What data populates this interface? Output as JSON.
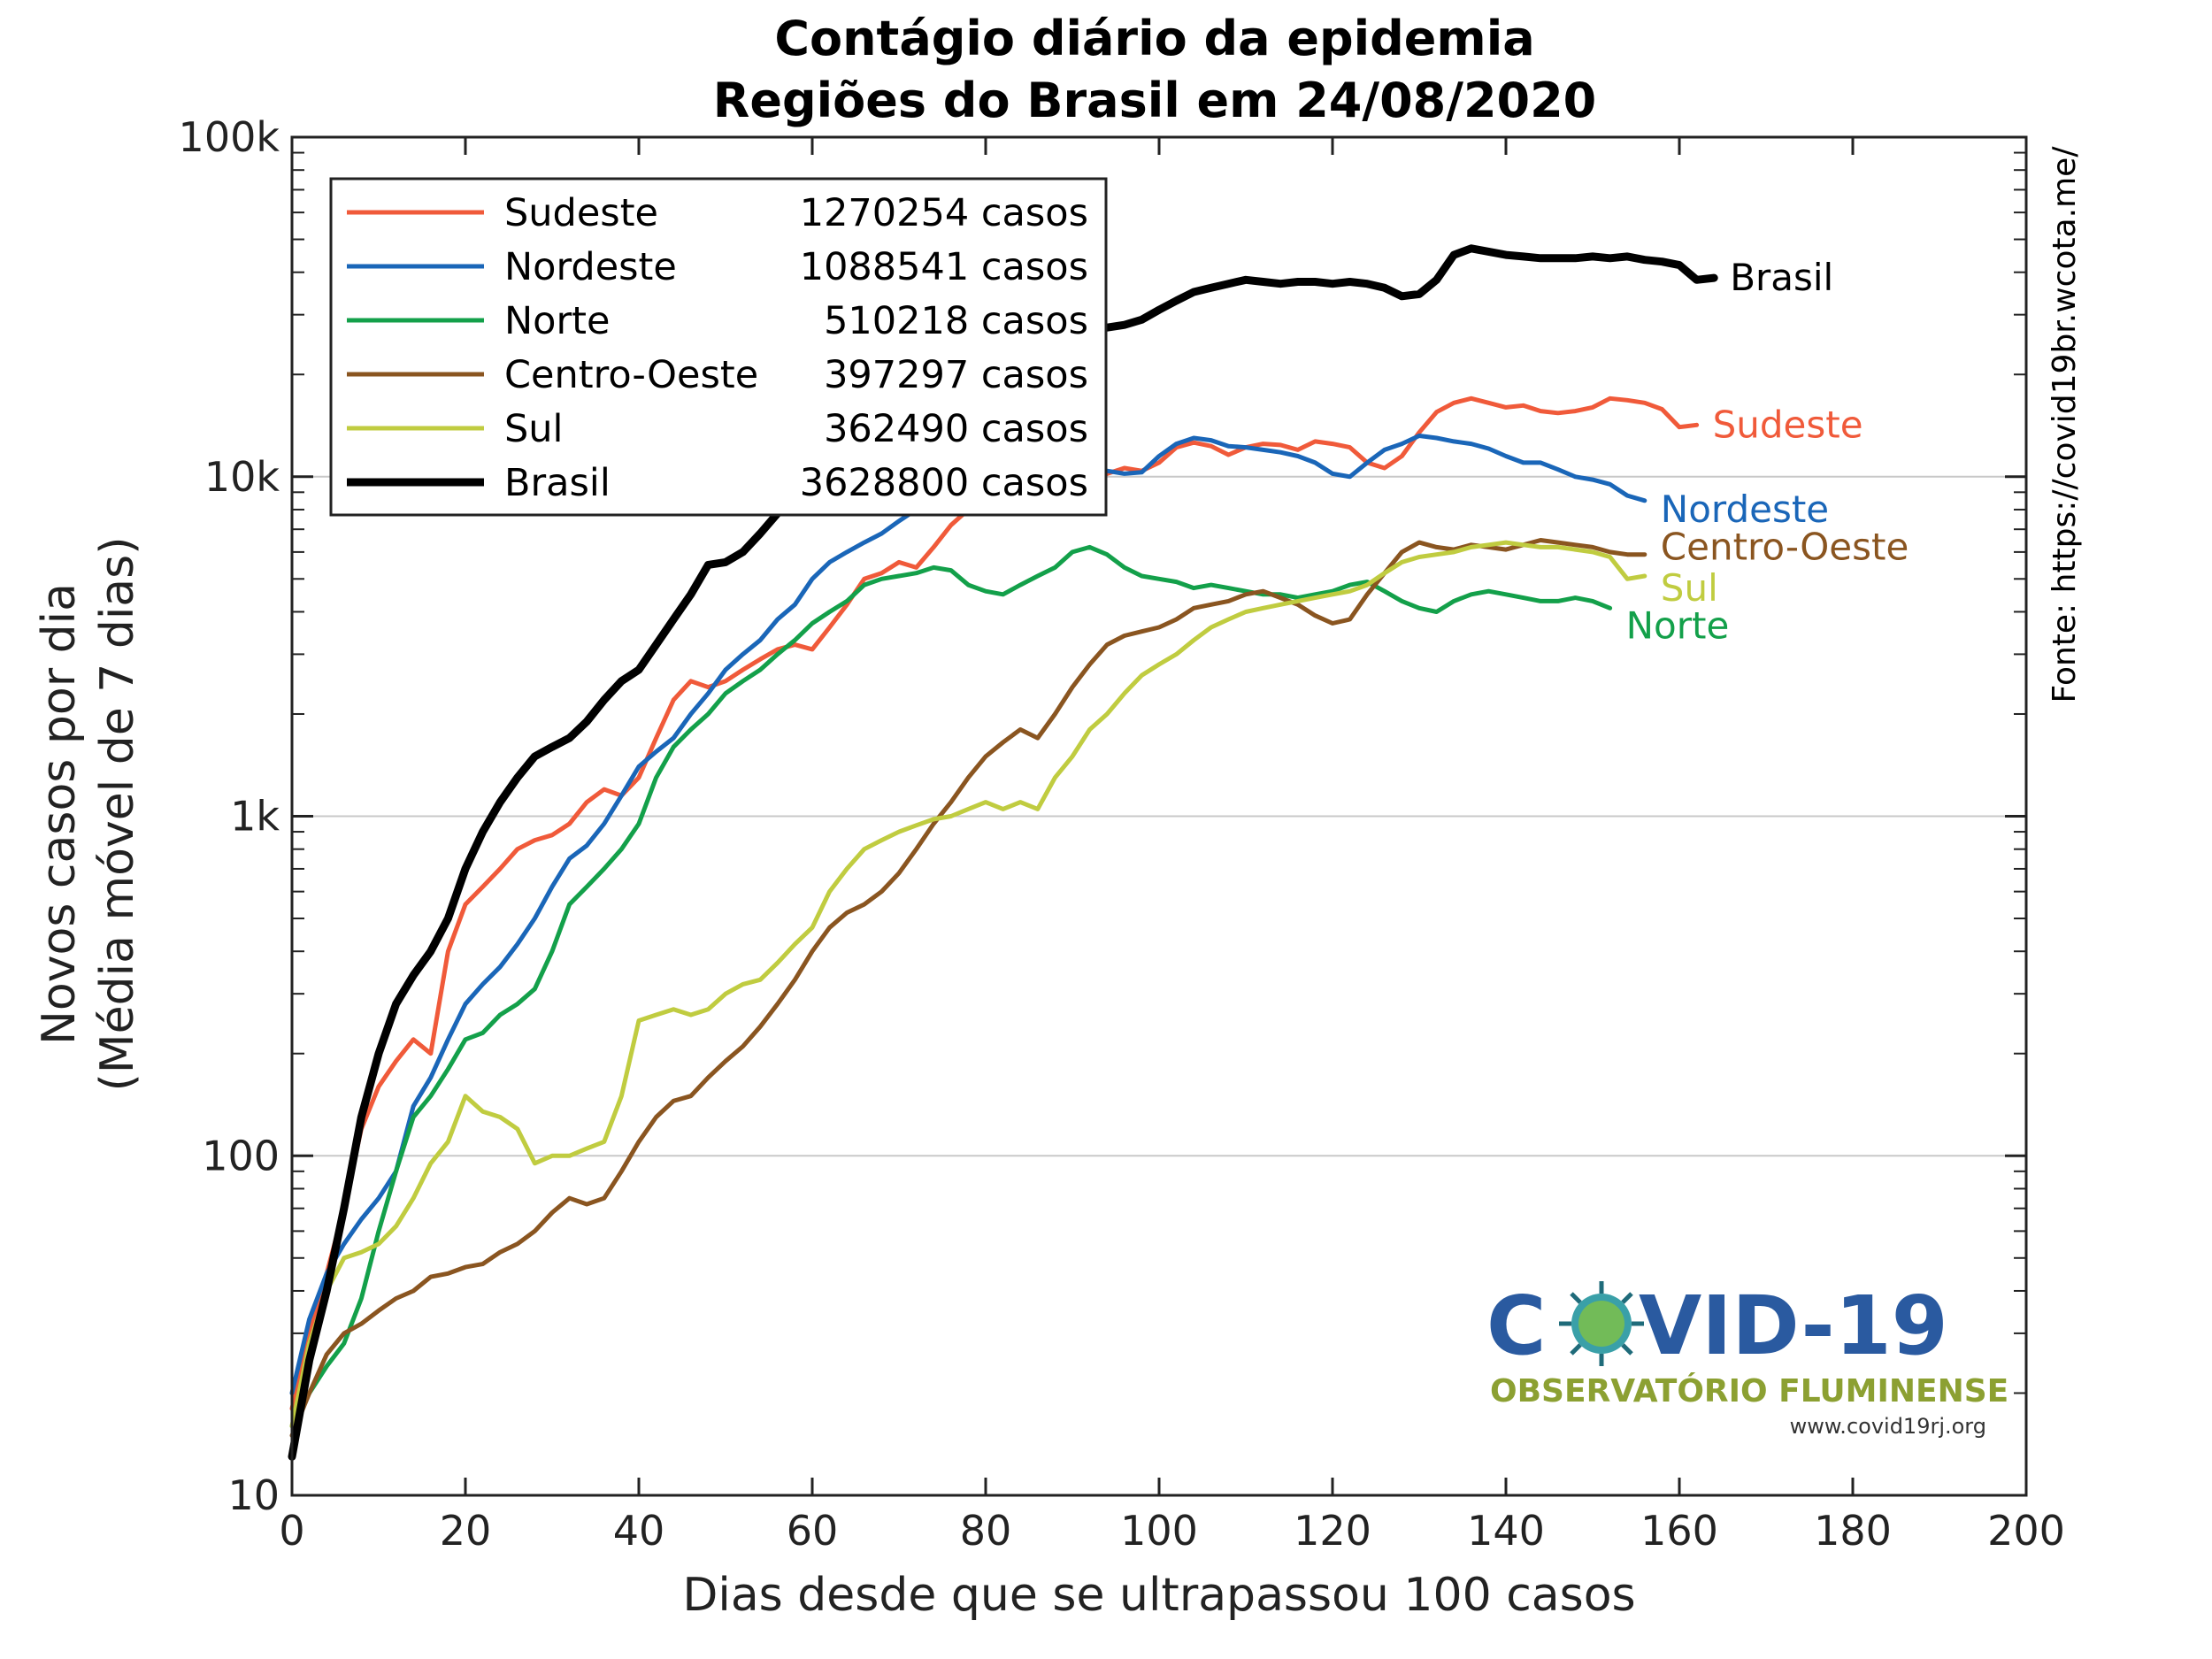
{
  "chart_data": {
    "type": "line",
    "title": "Contágio diário da epidemia",
    "subtitle": "Regiões do Brasil em 24/08/2020",
    "xlabel": "Dias desde que se ultrapassou 100 casos",
    "ylabel_line1": "Novos casos por dia",
    "ylabel_line2": "(Média móvel de 7 dias)",
    "source": "Fonte: https://covid19br.wcota.me/",
    "yscale": "log",
    "xlim": [
      0,
      200
    ],
    "ylim": [
      10,
      100000
    ],
    "grid": "y-major",
    "legend_position": "top-left",
    "x_ticks": [
      0,
      20,
      40,
      60,
      80,
      100,
      120,
      140,
      160,
      180,
      200
    ],
    "x_tick_labels": [
      "0",
      "20",
      "40",
      "60",
      "80",
      "100",
      "120",
      "140",
      "160",
      "180",
      "200"
    ],
    "y_ticks": [
      10,
      100,
      1000,
      10000,
      100000
    ],
    "y_tick_labels": [
      "10",
      "100",
      "1k",
      "10k",
      "100k"
    ],
    "series": [
      {
        "name": "Sudeste",
        "total": "1270254 casos",
        "end_label": "Sudeste",
        "color": "#f05a3a",
        "width": 5,
        "x": [
          0,
          2,
          4,
          6,
          8,
          10,
          12,
          14,
          16,
          18,
          20,
          22,
          24,
          26,
          28,
          30,
          32,
          34,
          36,
          38,
          40,
          42,
          44,
          46,
          48,
          50,
          52,
          54,
          56,
          58,
          60,
          62,
          64,
          66,
          68,
          70,
          72,
          74,
          76,
          78,
          80,
          82,
          84,
          86,
          88,
          90,
          92,
          94,
          96,
          98,
          100,
          102,
          104,
          106,
          108,
          110,
          112,
          114,
          116,
          118,
          120,
          122,
          124,
          126,
          128,
          130,
          132,
          134,
          136,
          138,
          140,
          142,
          144,
          146,
          148,
          150,
          152,
          154,
          156,
          158,
          160,
          162
        ],
        "y": [
          18,
          30,
          45,
          70,
          120,
          160,
          190,
          220,
          200,
          400,
          550,
          620,
          700,
          800,
          850,
          880,
          950,
          1100,
          1200,
          1150,
          1300,
          1700,
          2200,
          2500,
          2400,
          2500,
          2700,
          2900,
          3100,
          3200,
          3100,
          3600,
          4200,
          5000,
          5200,
          5600,
          5400,
          6200,
          7200,
          8000,
          8600,
          9000,
          9400,
          9200,
          9700,
          10000,
          9600,
          10200,
          10600,
          10400,
          11000,
          12200,
          12600,
          12300,
          11600,
          12200,
          12500,
          12400,
          12000,
          12700,
          12500,
          12200,
          11000,
          10600,
          11500,
          13500,
          15500,
          16500,
          17000,
          16500,
          16000,
          16200,
          15600,
          15400,
          15600,
          16000,
          17000,
          16800,
          16500,
          15800,
          14000,
          14200
        ]
      },
      {
        "name": "Nordeste",
        "total": "1088541 casos",
        "end_label": "Nordeste",
        "color": "#1a66b8",
        "width": 5,
        "x": [
          0,
          2,
          4,
          6,
          8,
          10,
          12,
          14,
          16,
          18,
          20,
          22,
          24,
          26,
          28,
          30,
          32,
          34,
          36,
          38,
          40,
          42,
          44,
          46,
          48,
          50,
          52,
          54,
          56,
          58,
          60,
          62,
          64,
          66,
          68,
          70,
          72,
          74,
          76,
          78,
          80,
          82,
          84,
          86,
          88,
          90,
          92,
          94,
          96,
          98,
          100,
          102,
          104,
          106,
          108,
          110,
          112,
          114,
          116,
          118,
          120,
          122,
          124,
          126,
          128,
          130,
          132,
          134,
          136,
          138,
          140,
          142,
          144,
          146,
          148,
          150,
          152,
          154,
          156
        ],
        "y": [
          20,
          33,
          45,
          55,
          65,
          75,
          90,
          140,
          170,
          220,
          280,
          320,
          360,
          420,
          500,
          620,
          750,
          820,
          950,
          1150,
          1400,
          1550,
          1700,
          2000,
          2300,
          2700,
          3000,
          3300,
          3800,
          4200,
          5000,
          5600,
          6000,
          6400,
          6800,
          7400,
          8000,
          8800,
          9500,
          9800,
          10200,
          10600,
          10400,
          10200,
          10000,
          10300,
          10500,
          10400,
          10200,
          10300,
          11500,
          12500,
          13000,
          12800,
          12300,
          12200,
          12000,
          11800,
          11500,
          11000,
          10200,
          10000,
          11000,
          12000,
          12500,
          13200,
          13000,
          12700,
          12500,
          12100,
          11500,
          11000,
          11000,
          10500,
          10000,
          9800,
          9500,
          8800,
          8500
        ]
      },
      {
        "name": "Norte",
        "total": "510218 casos",
        "end_label": "Norte",
        "color": "#13a04a",
        "width": 5,
        "x": [
          0,
          2,
          4,
          6,
          8,
          10,
          12,
          14,
          16,
          18,
          20,
          22,
          24,
          26,
          28,
          30,
          32,
          34,
          36,
          38,
          40,
          42,
          44,
          46,
          48,
          50,
          52,
          54,
          56,
          58,
          60,
          62,
          64,
          66,
          68,
          70,
          72,
          74,
          76,
          78,
          80,
          82,
          84,
          86,
          88,
          90,
          92,
          94,
          96,
          98,
          100,
          102,
          104,
          106,
          108,
          110,
          112,
          114,
          116,
          118,
          120,
          122,
          124,
          126,
          128,
          130,
          132,
          134,
          136,
          138,
          140,
          142,
          144,
          146,
          148,
          150,
          152
        ],
        "y": [
          16,
          20,
          24,
          28,
          38,
          60,
          90,
          130,
          150,
          180,
          220,
          230,
          260,
          280,
          310,
          400,
          550,
          620,
          700,
          800,
          950,
          1300,
          1600,
          1800,
          2000,
          2300,
          2500,
          2700,
          3000,
          3300,
          3700,
          4000,
          4300,
          4800,
          5000,
          5100,
          5200,
          5400,
          5300,
          4800,
          4600,
          4500,
          4800,
          5100,
          5400,
          6000,
          6200,
          5900,
          5400,
          5100,
          5000,
          4900,
          4700,
          4800,
          4700,
          4600,
          4500,
          4500,
          4400,
          4500,
          4600,
          4800,
          4900,
          4600,
          4300,
          4100,
          4000,
          4300,
          4500,
          4600,
          4500,
          4400,
          4300,
          4300,
          4400,
          4300,
          4100
        ]
      },
      {
        "name": "Centro-Oeste",
        "total": "397297 casos",
        "end_label": "Centro-Oeste",
        "color": "#8a5520",
        "width": 5,
        "x": [
          0,
          2,
          4,
          6,
          8,
          10,
          12,
          14,
          16,
          18,
          20,
          22,
          24,
          26,
          28,
          30,
          32,
          34,
          36,
          38,
          40,
          42,
          44,
          46,
          48,
          50,
          52,
          54,
          56,
          58,
          60,
          62,
          64,
          66,
          68,
          70,
          72,
          74,
          76,
          78,
          80,
          82,
          84,
          86,
          88,
          90,
          92,
          94,
          96,
          98,
          100,
          102,
          104,
          106,
          108,
          110,
          112,
          114,
          116,
          118,
          120,
          122,
          124,
          126,
          128,
          130,
          132,
          134,
          136,
          138,
          140,
          142,
          144,
          146,
          148,
          150,
          152,
          154,
          156
        ],
        "y": [
          15,
          20,
          26,
          30,
          32,
          35,
          38,
          40,
          44,
          45,
          47,
          48,
          52,
          55,
          60,
          68,
          75,
          72,
          75,
          90,
          110,
          130,
          145,
          150,
          170,
          190,
          210,
          240,
          280,
          330,
          400,
          470,
          520,
          550,
          600,
          680,
          800,
          950,
          1100,
          1300,
          1500,
          1650,
          1800,
          1700,
          2000,
          2400,
          2800,
          3200,
          3400,
          3500,
          3600,
          3800,
          4100,
          4200,
          4300,
          4500,
          4600,
          4400,
          4200,
          3900,
          3700,
          3800,
          4500,
          5200,
          6000,
          6400,
          6200,
          6100,
          6300,
          6200,
          6100,
          6300,
          6500,
          6400,
          6300,
          6200,
          6000,
          5900,
          5900
        ]
      },
      {
        "name": "Sul",
        "total": "362490 casos",
        "end_label": "Sul",
        "color": "#c0cc40",
        "width": 5,
        "x": [
          0,
          2,
          4,
          6,
          8,
          10,
          12,
          14,
          16,
          18,
          20,
          22,
          24,
          26,
          28,
          30,
          32,
          34,
          36,
          38,
          40,
          42,
          44,
          46,
          48,
          50,
          52,
          54,
          56,
          58,
          60,
          62,
          64,
          66,
          68,
          70,
          72,
          74,
          76,
          78,
          80,
          82,
          84,
          86,
          88,
          90,
          92,
          94,
          96,
          98,
          100,
          102,
          104,
          106,
          108,
          110,
          112,
          114,
          116,
          118,
          120,
          122,
          124,
          126,
          128,
          130,
          132,
          134,
          136,
          138,
          140,
          142,
          144,
          146,
          148,
          150,
          152,
          154,
          156
        ],
        "y": [
          16,
          28,
          40,
          50,
          52,
          55,
          62,
          75,
          95,
          110,
          150,
          135,
          130,
          120,
          95,
          100,
          100,
          105,
          110,
          150,
          250,
          260,
          270,
          260,
          270,
          300,
          320,
          330,
          370,
          420,
          470,
          600,
          700,
          800,
          850,
          900,
          940,
          980,
          1000,
          1050,
          1100,
          1050,
          1100,
          1050,
          1300,
          1500,
          1800,
          2000,
          2300,
          2600,
          2800,
          3000,
          3300,
          3600,
          3800,
          4000,
          4100,
          4200,
          4300,
          4400,
          4500,
          4600,
          4800,
          5200,
          5600,
          5800,
          5900,
          6000,
          6200,
          6300,
          6400,
          6300,
          6200,
          6200,
          6100,
          6000,
          5800,
          5000,
          5100
        ]
      },
      {
        "name": "Brasil",
        "total": "3628800 casos",
        "end_label": "Brasil",
        "color": "#000000",
        "width": 9,
        "x": [
          0,
          2,
          4,
          6,
          8,
          10,
          12,
          14,
          16,
          18,
          20,
          22,
          24,
          26,
          28,
          30,
          32,
          34,
          36,
          38,
          40,
          42,
          44,
          46,
          48,
          50,
          52,
          54,
          56,
          58,
          60,
          62,
          64,
          66,
          68,
          70,
          72,
          74,
          76,
          78,
          80,
          82,
          84,
          86,
          88,
          90,
          92,
          94,
          96,
          98,
          100,
          102,
          104,
          106,
          108,
          110,
          112,
          114,
          116,
          118,
          120,
          122,
          124,
          126,
          128,
          130,
          132,
          134,
          136,
          138,
          140,
          142,
          144,
          146,
          148,
          150,
          152,
          154,
          156,
          158,
          160,
          162,
          164
        ],
        "y": [
          13,
          25,
          40,
          70,
          130,
          200,
          280,
          340,
          400,
          500,
          700,
          900,
          1100,
          1300,
          1500,
          1600,
          1700,
          1900,
          2200,
          2500,
          2700,
          3200,
          3800,
          4500,
          5500,
          5600,
          6000,
          6800,
          7800,
          9000,
          10200,
          11600,
          13000,
          14500,
          15800,
          17500,
          18500,
          20000,
          21500,
          23000,
          24000,
          25000,
          26000,
          26500,
          27000,
          27500,
          27000,
          27500,
          28000,
          29000,
          31000,
          33000,
          35000,
          36000,
          37000,
          38000,
          37500,
          37000,
          37500,
          37500,
          37000,
          37500,
          37000,
          36000,
          34000,
          34500,
          38000,
          45000,
          47000,
          46000,
          45000,
          44500,
          44000,
          44000,
          44000,
          44500,
          44000,
          44500,
          43500,
          43000,
          42000,
          38000,
          38500
        ]
      }
    ]
  },
  "logo": {
    "main_left": "C",
    "main_right": "VID-19",
    "subtitle": "OBSERVATÓRIO FLUMINENSE",
    "url": "www.covid19rj.org"
  }
}
